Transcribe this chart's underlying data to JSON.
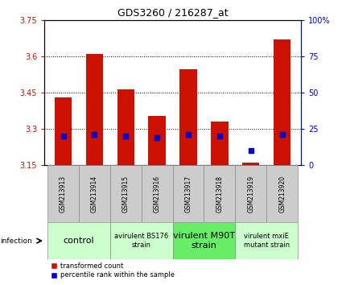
{
  "title": "GDS3260 / 216287_at",
  "samples": [
    "GSM213913",
    "GSM213914",
    "GSM213915",
    "GSM213916",
    "GSM213917",
    "GSM213918",
    "GSM213919",
    "GSM213920"
  ],
  "transformed_counts": [
    3.43,
    3.61,
    3.465,
    3.355,
    3.545,
    3.33,
    3.16,
    3.67
  ],
  "percentile_ranks": [
    20,
    21,
    20,
    19,
    21,
    20,
    10,
    21
  ],
  "ylim_left": [
    3.15,
    3.75
  ],
  "ylim_right": [
    0,
    100
  ],
  "yticks_left": [
    3.15,
    3.3,
    3.45,
    3.6,
    3.75
  ],
  "ytick_labels_left": [
    "3.15",
    "3.3",
    "3.45",
    "3.6",
    "3.75"
  ],
  "yticks_right": [
    0,
    25,
    50,
    75,
    100
  ],
  "ytick_labels_right": [
    "0",
    "25",
    "50",
    "75",
    "100%"
  ],
  "bar_color": "#cc1100",
  "blue_color": "#0000cc",
  "bar_width": 0.55,
  "groups": [
    {
      "label": "control",
      "samples": [
        0,
        1
      ],
      "color": "#ccffcc",
      "fontsize": 8
    },
    {
      "label": "avirulent BS176\nstrain",
      "samples": [
        2,
        3
      ],
      "color": "#ccffcc",
      "fontsize": 6
    },
    {
      "label": "virulent M90T\nstrain",
      "samples": [
        4,
        5
      ],
      "color": "#66ee66",
      "fontsize": 8
    },
    {
      "label": "virulent mxiE\nmutant strain",
      "samples": [
        6,
        7
      ],
      "color": "#ccffcc",
      "fontsize": 6
    }
  ],
  "infection_label": "infection",
  "legend_red_label": "transformed count",
  "legend_blue_label": "percentile rank within the sample",
  "background_color": "#ffffff",
  "plot_bg": "#ffffff",
  "sample_cell_color": "#cccccc",
  "cell_edge_color": "#888888"
}
